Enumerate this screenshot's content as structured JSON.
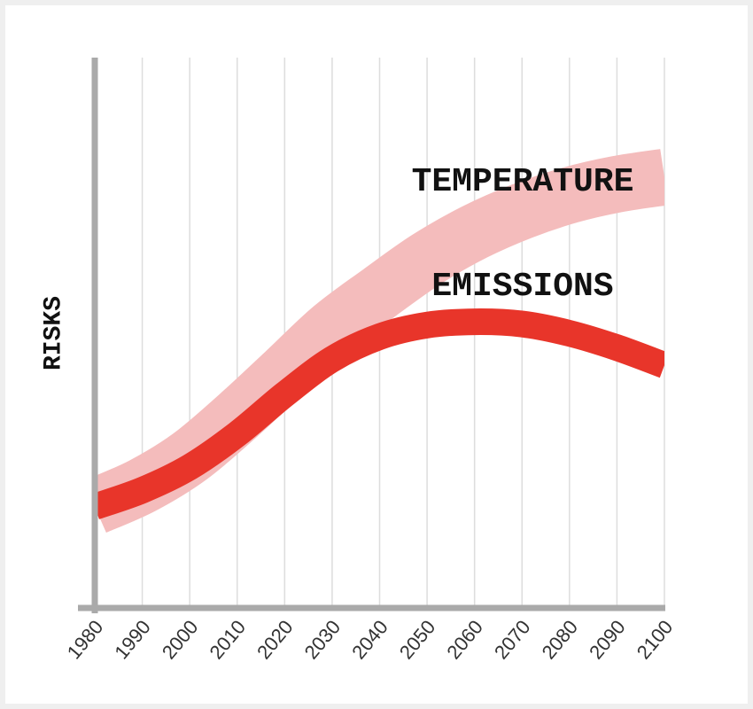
{
  "chart_data": {
    "type": "line",
    "ylabel": "RISKS",
    "x": [
      1980,
      1990,
      2000,
      2010,
      2020,
      2030,
      2040,
      2050,
      2060,
      2070,
      2080,
      2090,
      2100
    ],
    "series": [
      {
        "name": "TEMPERATURE",
        "color": "#f4bcbc",
        "values": [
          18.4,
          22.2,
          27.5,
          34.8,
          42.8,
          50.9,
          57.3,
          63.4,
          68.3,
          72.1,
          75.0,
          77.0,
          78.3
        ]
      },
      {
        "name": "EMISSIONS",
        "color": "#e8352a",
        "values": [
          18.4,
          21.4,
          25.6,
          31.6,
          38.8,
          45.2,
          49.3,
          51.4,
          52.0,
          51.6,
          49.9,
          47.3,
          44.1
        ]
      }
    ],
    "xlim": [
      1980,
      2100
    ],
    "xticks": [
      1980,
      1990,
      2000,
      2010,
      2020,
      2030,
      2040,
      2050,
      2060,
      2070,
      2080,
      2090,
      2100
    ],
    "ylim": [
      0,
      100
    ],
    "grid": true
  }
}
